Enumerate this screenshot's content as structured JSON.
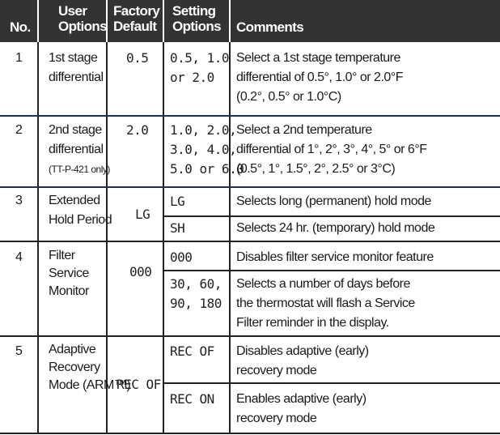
{
  "header": {
    "no": "No.",
    "user_options": [
      "User",
      "Options"
    ],
    "factory_default": [
      "Factory",
      "Default"
    ],
    "setting_options": [
      "Setting",
      "Options"
    ],
    "comments": "Comments"
  },
  "rows": [
    {
      "no": "1",
      "option": [
        "1st stage",
        "differential"
      ],
      "default": "0.5",
      "settings": [
        {
          "value": [
            "0.5, 1.0",
            "or 2.0"
          ],
          "comment": [
            "Select a 1st stage temperature",
            "differential of 0.5°, 1.0° or 2.0°F",
            "(0.2°, 0.5° or 1.0°C)"
          ]
        }
      ]
    },
    {
      "no": "2",
      "option": [
        "2nd stage",
        "differential"
      ],
      "option_note": "(TT-P-421 only)",
      "default": "2.0",
      "settings": [
        {
          "value": [
            "1.0, 2.0,",
            "3.0, 4.0,",
            "5.0 or 6.0"
          ],
          "comment": [
            "Select a 2nd temperature",
            "differential of 1°, 2°, 3°, 4°, 5° or 6°F",
            "(0.5°, 1°, 1.5°, 2°, 2.5° or 3°C)"
          ]
        }
      ]
    },
    {
      "no": "3",
      "option": [
        "Extended",
        "Hold Period"
      ],
      "default": "LG",
      "settings": [
        {
          "value": [
            "LG"
          ],
          "comment": [
            "Selects long (permanent) hold mode"
          ]
        },
        {
          "value": [
            "SH"
          ],
          "comment": [
            "Selects 24 hr. (temporary) hold mode"
          ]
        }
      ]
    },
    {
      "no": "4",
      "option": [
        "Filter",
        "Service",
        "Monitor"
      ],
      "default": "000",
      "settings": [
        {
          "value": [
            "000"
          ],
          "comment": [
            "Disables filter service monitor feature"
          ]
        },
        {
          "value": [
            "30, 60,",
            "90, 180"
          ],
          "comment": [
            "Selects a number of days before",
            "the thermostat will flash a Service",
            "Filter reminder in the display."
          ]
        }
      ]
    },
    {
      "no": "5",
      "option": [
        "Adaptive",
        "Recovery",
        "Mode (ARM™)"
      ],
      "default": "REC OF",
      "settings": [
        {
          "value": [
            "REC OF"
          ],
          "comment": [
            "Disables adaptive (early)",
            "recovery mode"
          ]
        },
        {
          "value": [
            "REC ON"
          ],
          "comment": [
            "Enables adaptive (early)",
            "recovery mode"
          ]
        }
      ]
    }
  ]
}
